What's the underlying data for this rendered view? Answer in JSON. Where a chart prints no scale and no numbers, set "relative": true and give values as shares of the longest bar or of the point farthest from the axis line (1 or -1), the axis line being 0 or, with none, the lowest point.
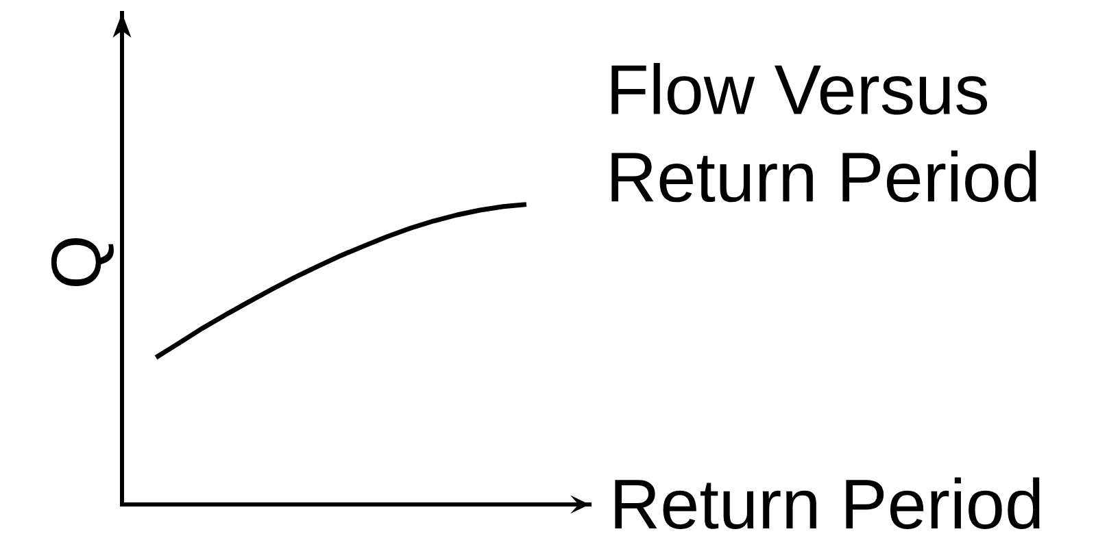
{
  "chart_data": {
    "type": "line",
    "title": "Flow Versus\nReturn Period",
    "xlabel": "Return Period",
    "ylabel": "Q",
    "relative": true,
    "tick_labels": false,
    "line_style": "solid",
    "categories": [
      null,
      null,
      null,
      null,
      null,
      null,
      null,
      null,
      null,
      null,
      null,
      null,
      null,
      null,
      null,
      null,
      null
    ],
    "series": [
      {
        "color": "#000000",
        "values": [
          0.49,
          0.538,
          0.587,
          0.632,
          0.675,
          0.717,
          0.757,
          0.794,
          0.83,
          0.862,
          0.893,
          0.921,
          0.945,
          0.965,
          0.981,
          0.993,
          1
        ]
      }
    ]
  }
}
